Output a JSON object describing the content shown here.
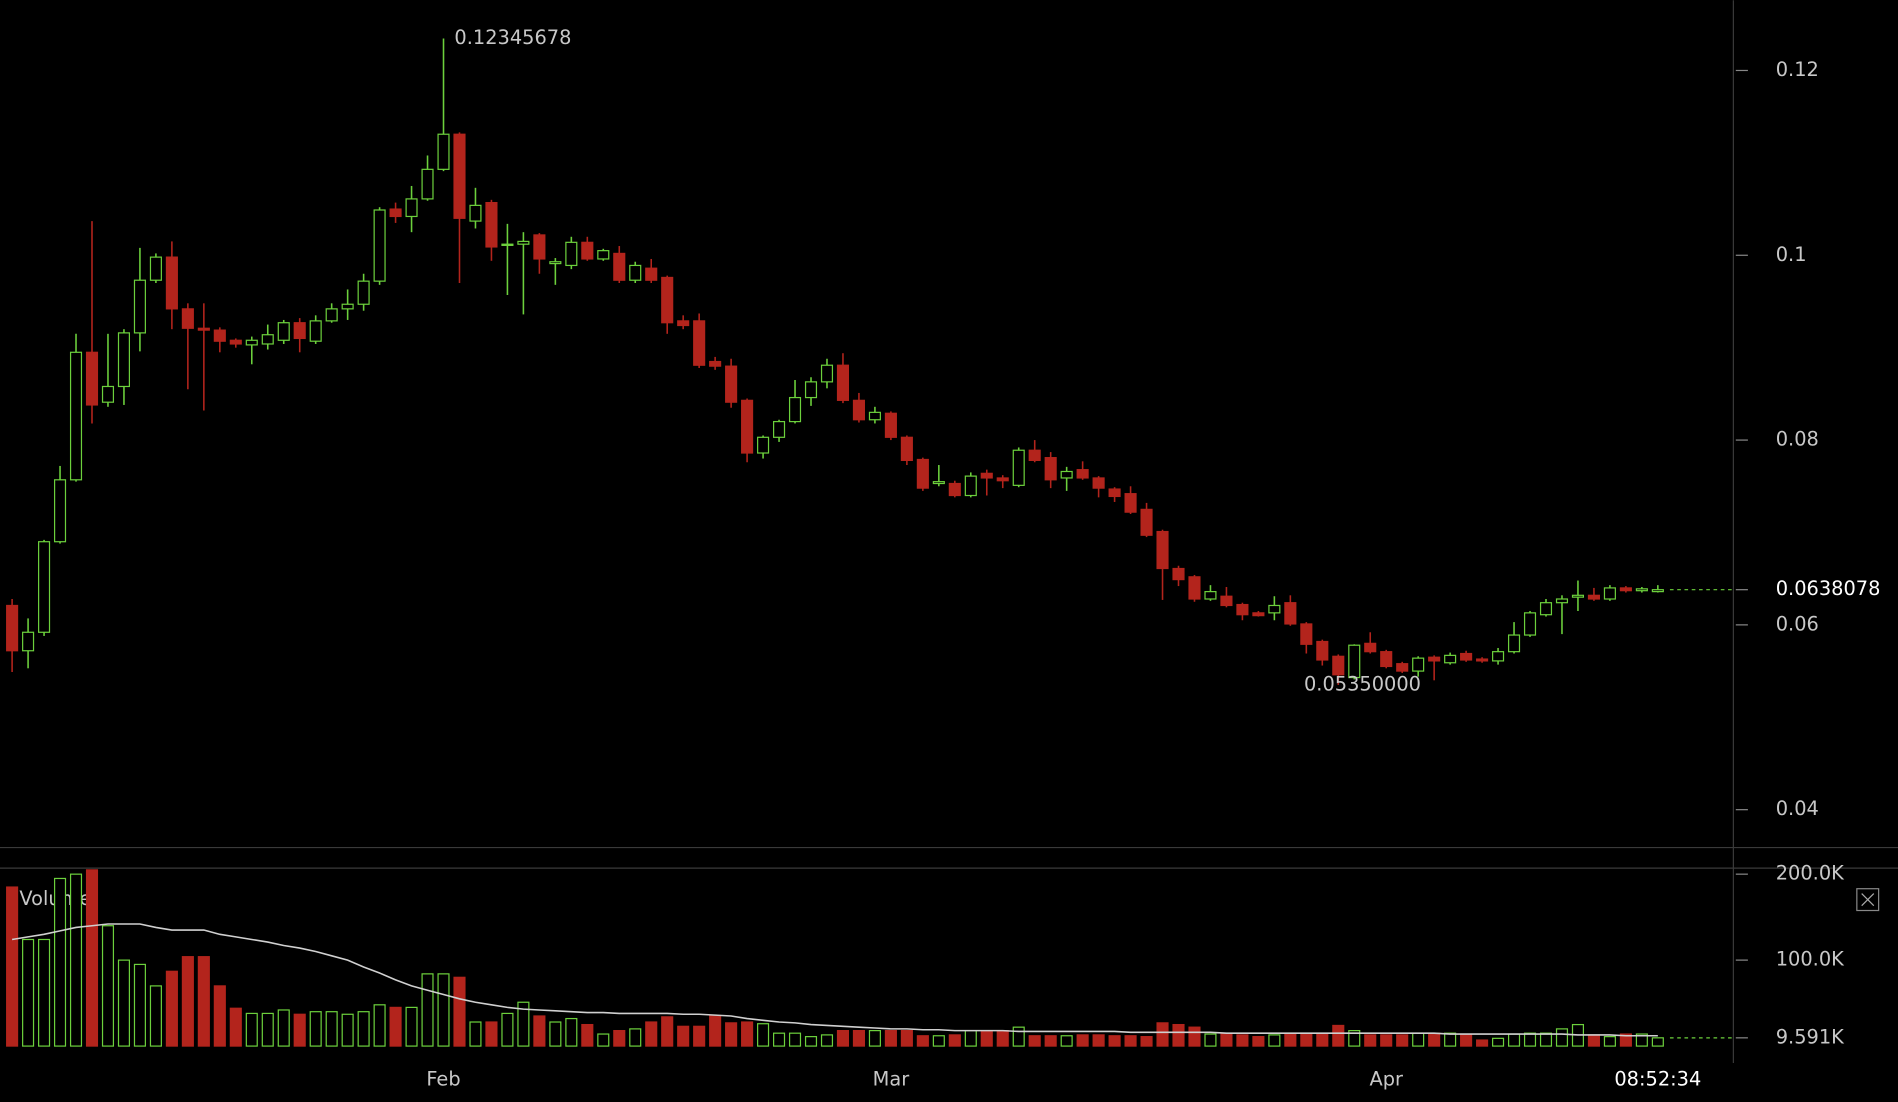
{
  "chart_data": {
    "type": "candlestick",
    "categories": [
      null,
      null,
      null,
      null,
      null,
      null,
      null,
      null,
      null,
      null,
      null,
      null,
      null,
      null,
      null,
      null,
      null,
      null,
      null,
      null,
      null,
      null,
      null,
      null,
      null,
      null,
      null,
      "Feb",
      null,
      null,
      null,
      null,
      null,
      null,
      null,
      null,
      null,
      null,
      null,
      null,
      null,
      null,
      null,
      null,
      null,
      null,
      null,
      null,
      null,
      null,
      null,
      null,
      null,
      null,
      null,
      "Mar",
      null,
      null,
      null,
      null,
      null,
      null,
      null,
      null,
      null,
      null,
      null,
      null,
      null,
      null,
      null,
      null,
      null,
      null,
      null,
      null,
      null,
      null,
      null,
      null,
      null,
      null,
      null,
      null,
      null,
      null,
      "Apr",
      null,
      null,
      null,
      null,
      null,
      null,
      null,
      null,
      null,
      null,
      null,
      null,
      null,
      null,
      null,
      null,
      null
    ],
    "open": [
      0.0621,
      0.0572,
      0.0592,
      0.069,
      0.0757,
      0.0895,
      0.0841,
      0.0858,
      0.0916,
      0.0973,
      0.0998,
      0.0942,
      0.0921,
      0.0919,
      0.0908,
      0.0903,
      0.0904,
      0.0908,
      0.0927,
      0.0907,
      0.0929,
      0.0942,
      0.0947,
      0.0972,
      0.105,
      0.1042,
      0.1061,
      0.1093,
      0.1131,
      0.1037,
      0.1057,
      0.1011,
      0.1012,
      0.1022,
      0.0991,
      0.0989,
      0.1014,
      0.0996,
      0.1002,
      0.0973,
      0.0986,
      0.0976,
      0.0929,
      0.0929,
      0.0885,
      0.088,
      0.0843,
      0.0786,
      0.0803,
      0.082,
      0.0846,
      0.0863,
      0.0881,
      0.0843,
      0.0822,
      0.0829,
      0.0803,
      0.0779,
      0.0753,
      0.0753,
      0.074,
      0.0764,
      0.0759,
      0.0751,
      0.0789,
      0.0781,
      0.0759,
      0.0768,
      0.0759,
      0.0747,
      0.0742,
      0.0725,
      0.0701,
      0.0661,
      0.0652,
      0.0628,
      0.0631,
      0.0622,
      0.0613,
      0.0613,
      0.0624,
      0.0601,
      0.0582,
      0.0566,
      0.0543,
      0.058,
      0.0571,
      0.0558,
      0.055,
      0.0565,
      0.0559,
      0.0569,
      0.0563,
      0.0561,
      0.0571,
      0.0589,
      0.0611,
      0.0624,
      0.063,
      0.0632,
      0.0628,
      0.064,
      0.0637,
      0.0636
    ],
    "high": [
      0.0628,
      0.0607,
      0.0692,
      0.0772,
      0.0915,
      0.1037,
      0.0915,
      0.092,
      0.1008,
      0.1002,
      0.1015,
      0.0948,
      0.0948,
      0.0922,
      0.091,
      0.0912,
      0.0925,
      0.093,
      0.0932,
      0.0935,
      0.0948,
      0.0963,
      0.098,
      0.1052,
      0.1057,
      0.1075,
      0.1108,
      0.12345678,
      0.1133,
      0.1073,
      0.106,
      0.1034,
      0.1025,
      0.1024,
      0.0997,
      0.102,
      0.102,
      0.1007,
      0.101,
      0.0993,
      0.0996,
      0.0978,
      0.0935,
      0.0937,
      0.089,
      0.0888,
      0.0845,
      0.0805,
      0.0822,
      0.0865,
      0.0868,
      0.0888,
      0.0894,
      0.0851,
      0.0836,
      0.0831,
      0.0805,
      0.0781,
      0.0773,
      0.0756,
      0.0765,
      0.0768,
      0.0762,
      0.0792,
      0.08,
      0.0787,
      0.0771,
      0.0777,
      0.0761,
      0.0749,
      0.075,
      0.0732,
      0.0703,
      0.0664,
      0.0654,
      0.0643,
      0.0641,
      0.0624,
      0.0615,
      0.0631,
      0.0632,
      0.0603,
      0.0584,
      0.0568,
      0.0579,
      0.0592,
      0.0573,
      0.056,
      0.0566,
      0.0567,
      0.057,
      0.0572,
      0.0565,
      0.0575,
      0.0603,
      0.0615,
      0.0628,
      0.0632,
      0.0648,
      0.064,
      0.0643,
      0.0642,
      0.0641,
      0.0643
    ],
    "low": [
      0.0549,
      0.0553,
      0.0588,
      0.0688,
      0.0755,
      0.0818,
      0.0836,
      0.0838,
      0.0896,
      0.097,
      0.092,
      0.0855,
      0.0832,
      0.0895,
      0.09,
      0.0882,
      0.0898,
      0.0904,
      0.0895,
      0.0904,
      0.0927,
      0.093,
      0.094,
      0.0968,
      0.1035,
      0.1025,
      0.1059,
      0.1091,
      0.097,
      0.1029,
      0.0994,
      0.0957,
      0.0936,
      0.098,
      0.0968,
      0.0985,
      0.0994,
      0.0994,
      0.097,
      0.097,
      0.097,
      0.0915,
      0.092,
      0.0878,
      0.0876,
      0.0835,
      0.0776,
      0.078,
      0.0798,
      0.0818,
      0.0837,
      0.0856,
      0.084,
      0.0819,
      0.0818,
      0.08,
      0.0773,
      0.0745,
      0.075,
      0.0738,
      0.0738,
      0.074,
      0.0748,
      0.0749,
      0.0776,
      0.0748,
      0.0745,
      0.0757,
      0.0738,
      0.0733,
      0.072,
      0.0695,
      0.0627,
      0.0642,
      0.0625,
      0.0626,
      0.0619,
      0.0605,
      0.0609,
      0.0605,
      0.0599,
      0.0569,
      0.0556,
      0.0535,
      0.0541,
      0.0569,
      0.0553,
      0.0548,
      0.0544,
      0.054,
      0.0557,
      0.056,
      0.0559,
      0.0557,
      0.0569,
      0.0587,
      0.0609,
      0.059,
      0.0615,
      0.0626,
      0.0626,
      0.0635,
      0.0635,
      0.0635
    ],
    "close": [
      0.0572,
      0.0592,
      0.069,
      0.0757,
      0.0895,
      0.0838,
      0.0858,
      0.0916,
      0.0973,
      0.0998,
      0.0942,
      0.0921,
      0.0919,
      0.0907,
      0.0904,
      0.0908,
      0.0914,
      0.0927,
      0.091,
      0.0929,
      0.0942,
      0.0947,
      0.0972,
      0.1049,
      0.1042,
      0.1061,
      0.1093,
      0.1131,
      0.104,
      0.1054,
      0.1009,
      0.1012,
      0.1015,
      0.0996,
      0.0993,
      0.1014,
      0.0996,
      0.1005,
      0.0973,
      0.0989,
      0.0973,
      0.0927,
      0.0924,
      0.0881,
      0.088,
      0.0841,
      0.0786,
      0.0803,
      0.082,
      0.0846,
      0.0863,
      0.0881,
      0.0843,
      0.0822,
      0.083,
      0.0803,
      0.0778,
      0.0748,
      0.0755,
      0.074,
      0.0761,
      0.0759,
      0.0756,
      0.0789,
      0.0778,
      0.0757,
      0.0766,
      0.0759,
      0.0748,
      0.0739,
      0.0722,
      0.0697,
      0.0661,
      0.0649,
      0.0628,
      0.0636,
      0.0621,
      0.0611,
      0.061,
      0.0621,
      0.0601,
      0.0579,
      0.0562,
      0.0546,
      0.0578,
      0.0571,
      0.0555,
      0.055,
      0.0564,
      0.0561,
      0.0567,
      0.0562,
      0.0561,
      0.0571,
      0.0589,
      0.0613,
      0.0624,
      0.0628,
      0.0632,
      0.0628,
      0.064,
      0.0637,
      0.0639,
      0.0638078
    ],
    "up_color": "#6cd03c",
    "down_color": "#b3241c",
    "ylim": [
      0.0359,
      0.1276
    ],
    "yticks": [
      0.04,
      0.06,
      0.08,
      0.1,
      0.12
    ],
    "high_label": 0.12345678,
    "low_label": {
      "value": 0.0535,
      "label": "0.05350000"
    },
    "last_price": 0.0638078,
    "clock": "08:52:34",
    "volume": {
      "title": "Volume",
      "values": [
        185000,
        124000,
        124000,
        195000,
        200000,
        205000,
        140000,
        100000,
        95000,
        70000,
        87000,
        104000,
        104000,
        70000,
        44000,
        38000,
        38000,
        42000,
        37000,
        40000,
        40000,
        37000,
        40000,
        48000,
        45000,
        45000,
        84000,
        84000,
        80000,
        28000,
        28000,
        38000,
        51000,
        35000,
        28000,
        32000,
        25000,
        14000,
        18000,
        20000,
        28000,
        34000,
        23000,
        23000,
        35000,
        27000,
        28000,
        26000,
        15000,
        15000,
        11000,
        13000,
        18000,
        18000,
        18000,
        18000,
        18000,
        12000,
        12000,
        13000,
        18000,
        18000,
        18000,
        22000,
        12000,
        12000,
        12000,
        13000,
        13000,
        12000,
        12000,
        11000,
        27000,
        25000,
        22000,
        14000,
        14000,
        13000,
        11000,
        13000,
        14000,
        14000,
        14000,
        24000,
        18000,
        13000,
        13000,
        13000,
        15000,
        15000,
        15000,
        13000,
        7000,
        9000,
        14000,
        15000,
        15000,
        20000,
        25000,
        13000,
        11000,
        14000,
        14000,
        9591
      ],
      "ma": [
        124000,
        127000,
        130000,
        134000,
        138000,
        140000,
        142000,
        142000,
        142000,
        138000,
        135000,
        135000,
        135000,
        130000,
        127000,
        124000,
        121000,
        117000,
        114000,
        110000,
        105000,
        100000,
        92000,
        85000,
        77000,
        70000,
        65000,
        60000,
        55000,
        51000,
        48000,
        45000,
        43000,
        42000,
        41000,
        40000,
        39000,
        39000,
        38000,
        38000,
        38000,
        38000,
        37000,
        37000,
        36000,
        35000,
        32000,
        30000,
        28000,
        27000,
        25000,
        24000,
        23000,
        22000,
        21000,
        20000,
        20000,
        19000,
        19000,
        18000,
        18000,
        18000,
        18000,
        17000,
        17000,
        17000,
        17000,
        17000,
        17000,
        17000,
        16000,
        16000,
        16000,
        16000,
        16000,
        16000,
        15000,
        15000,
        15000,
        15000,
        15000,
        15000,
        15000,
        15000,
        15000,
        15000,
        15000,
        15000,
        15000,
        15000,
        14000,
        14000,
        14000,
        14000,
        14000,
        14000,
        14000,
        14000,
        13000,
        13000,
        13000,
        12000,
        12000,
        12000
      ],
      "ma_color": "#d0d0d0",
      "ylim": [
        0,
        207000
      ],
      "yticks": [
        {
          "value": 200000,
          "label": "200.0K"
        },
        {
          "value": 100000,
          "label": "100.0K"
        },
        {
          "value": 9591,
          "label": "9.591K"
        }
      ]
    }
  }
}
